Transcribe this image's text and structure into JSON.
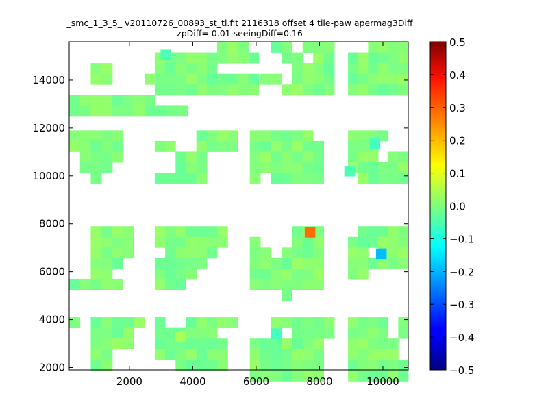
{
  "chart_data": {
    "type": "heatmap",
    "title": "_smc_1_3_5_ v20110726_00893_st_tl.fit 2116318 offset 4 tile-paw apermag3Diff",
    "subtitle": "zpDiff= 0.01 seeingDiff=0.16",
    "xlabel": "",
    "ylabel": "",
    "xlim": [
      100,
      10800
    ],
    "ylim": [
      1900,
      15600
    ],
    "xticks": [
      "2000",
      "4000",
      "6000",
      "8000",
      "10000"
    ],
    "yticks": [
      "2000",
      "4000",
      "6000",
      "8000",
      "10000",
      "12000",
      "14000"
    ],
    "colorbar": {
      "vmin": -0.5,
      "vmax": 0.5,
      "ticks": [
        "0.5",
        "0.4",
        "0.3",
        "0.2",
        "0.1",
        "0.0",
        "−0.1",
        "−0.2",
        "−0.3",
        "−0.4",
        "−0.5"
      ],
      "colormap": "jet"
    },
    "cell_size": [
      335,
      445
    ],
    "base_value": 0.0,
    "blocks": [
      {
        "x0": 100,
        "x1": 1800,
        "y0": 15600,
        "y1": 13500,
        "shape": [
          "...........",
          ".........##",
          "..##....###",
          "..##...####",
          "........###",
          "########...",
          "###########"
        ]
      },
      {
        "x0": 2800,
        "x1": 5100,
        "y0": 15600,
        "y1": 13500,
        "shape": [
          "......###",
          "##########",
          "######....",
          "##########",
          "##########"
        ]
      },
      {
        "x0": 5800,
        "x1": 7800,
        "y0": 15600,
        "y1": 13500,
        "shape": [
          "..##.###",
          "...##.##",
          "....####",
          ".##.####",
          "...#####"
        ]
      },
      {
        "x0": 8900,
        "x1": 10800,
        "y0": 15600,
        "y1": 13500,
        "shape": [
          "..####",
          "########",
          "########",
          "########",
          "########"
        ]
      },
      {
        "x0": 100,
        "x1": 1800,
        "y0": 11900,
        "y1": 9900,
        "shape": [
          "#####",
          "#####",
          ".####",
          ".###",
          "..#"
        ]
      },
      {
        "x0": 2800,
        "x1": 5100,
        "y0": 11900,
        "y1": 9900,
        "shape": [
          "....####",
          "##..####",
          "..###...",
          "..###",
          "#####"
        ]
      },
      {
        "x0": 5800,
        "x1": 7800,
        "y0": 11900,
        "y1": 9900,
        "shape": [
          "######",
          "#######",
          "#######",
          "#######",
          "#.#####"
        ]
      },
      {
        "x0": 8900,
        "x1": 10800,
        "y0": 11900,
        "y1": 9900,
        "shape": [
          "####",
          "###",
          "###.####",
          "########",
          ".#######"
        ]
      },
      {
        "x0": 100,
        "x1": 1800,
        "y0": 7900,
        "y1": 5800,
        "shape": [
          "..####",
          "..####",
          "..####",
          "..###",
          "..##",
          "#####"
        ]
      },
      {
        "x0": 2800,
        "x1": 5100,
        "y0": 7900,
        "y1": 5800,
        "shape": [
          "#######",
          "#######",
          ".#####",
          "#####",
          "####",
          "###"
        ]
      },
      {
        "x0": 5800,
        "x1": 7800,
        "y0": 7900,
        "y1": 5400,
        "shape": [
          "....###",
          "#...###",
          "##.####",
          "#######",
          "#######",
          "#######",
          "...#"
        ]
      },
      {
        "x0": 8900,
        "x1": 10800,
        "y0": 7900,
        "y1": 5800,
        "shape": [
          ".######",
          "#######",
          "##.####",
          "#######",
          "##....#",
          "......#"
        ]
      },
      {
        "x0": 100,
        "x1": 1800,
        "y0": 4100,
        "y1": 2100,
        "shape": [
          "#.#####",
          "..####",
          "..####",
          "..##",
          "..##"
        ]
      },
      {
        "x0": 2800,
        "x1": 5100,
        "y0": 4100,
        "y1": 2100,
        "shape": [
          "#..#####",
          "######",
          "#######",
          "#######",
          "..#####"
        ]
      },
      {
        "x0": 5800,
        "x1": 7800,
        "y0": 4100,
        "y1": 1900,
        "shape": [
          "..######",
          "..#.####",
          "#######",
          "#######",
          "#######",
          "#######"
        ]
      },
      {
        "x0": 8900,
        "x1": 10800,
        "y0": 4100,
        "y1": 1900,
        "shape": [
          "####.###",
          "####.###",
          "#####.##",
          "#####",
          "######",
          "######"
        ]
      }
    ],
    "highlights": [
      {
        "x": 7700,
        "y": 7650,
        "value": 0.27
      },
      {
        "x": 9950,
        "y": 6750,
        "value": -0.19
      },
      {
        "x": 9750,
        "y": 11350,
        "value": -0.06
      },
      {
        "x": 3150,
        "y": 15050,
        "value": -0.05
      },
      {
        "x": 6650,
        "y": 3400,
        "value": -0.06
      },
      {
        "x": 3600,
        "y": 3300,
        "value": 0.04
      },
      {
        "x": 8950,
        "y": 10200,
        "value": -0.05
      }
    ],
    "grid": false,
    "legend": "colorbar-right"
  }
}
